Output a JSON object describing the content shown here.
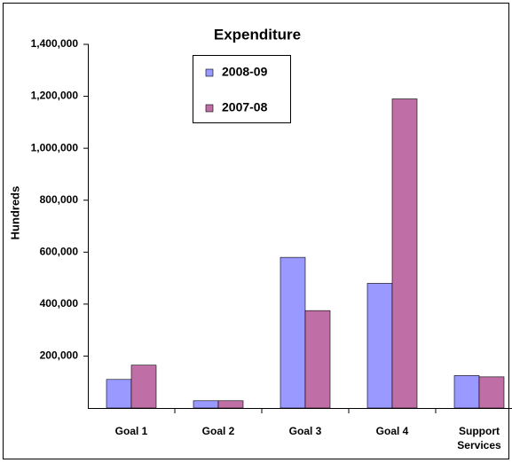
{
  "chart_data": {
    "type": "bar",
    "title": "Expenditure",
    "y_label": "Hundreds",
    "categories": [
      "Goal 1",
      "Goal 2",
      "Goal 3",
      "Goal 4",
      "Support Services"
    ],
    "series": [
      {
        "name": "2008-09",
        "color": "#9999ff",
        "values": [
          110000,
          28000,
          580000,
          480000,
          125000
        ]
      },
      {
        "name": "2007-08",
        "color": "#bf6fa6",
        "values": [
          165000,
          28000,
          375000,
          1190000,
          120000
        ]
      }
    ],
    "ylim": [
      0,
      1400000
    ],
    "yticks": [
      {
        "value": 200000,
        "label": "200,000"
      },
      {
        "value": 400000,
        "label": "400,000"
      },
      {
        "value": 600000,
        "label": "600,000"
      },
      {
        "value": 800000,
        "label": "800,000"
      },
      {
        "value": 1000000,
        "label": "1,000,000"
      },
      {
        "value": 1200000,
        "label": "1,200,000"
      },
      {
        "value": 1400000,
        "label": "1,400,000"
      }
    ],
    "grid": false
  }
}
